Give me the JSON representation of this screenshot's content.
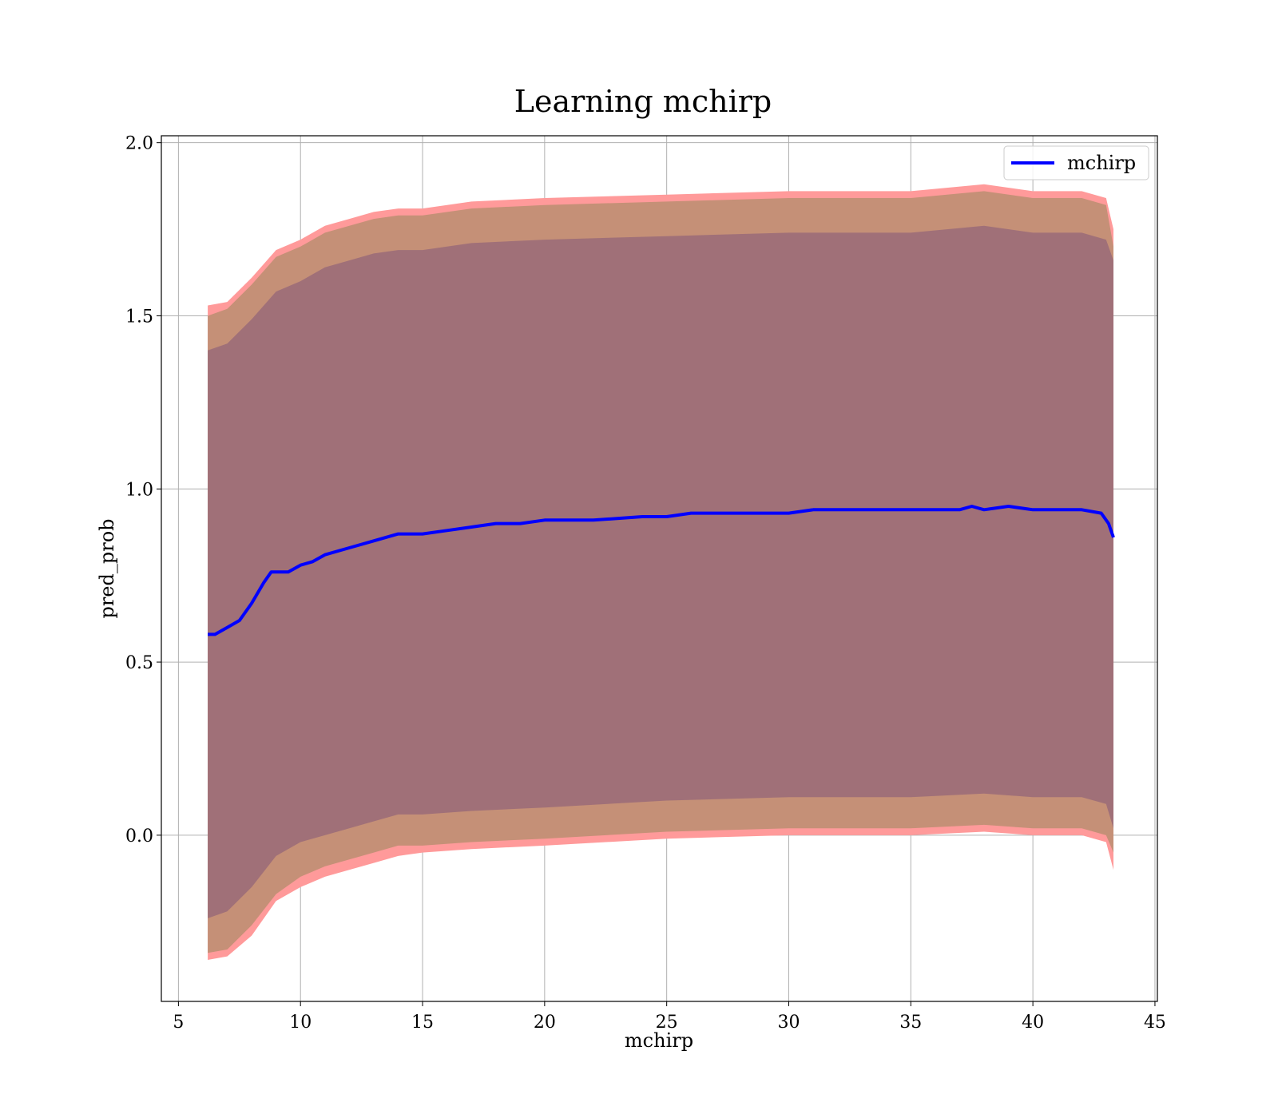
{
  "chart_data": {
    "type": "line",
    "title": "Learning mchirp",
    "xlabel": "mchirp",
    "ylabel": "pred_prob",
    "xlim": [
      4.3,
      45.1
    ],
    "ylim": [
      -0.48,
      2.02
    ],
    "xticks": [
      5,
      10,
      15,
      20,
      25,
      30,
      35,
      40,
      45
    ],
    "yticks": [
      0.0,
      0.5,
      1.0,
      1.5,
      2.0
    ],
    "ytick_labels": [
      "0.0",
      "0.5",
      "1.0",
      "1.5",
      "2.0"
    ],
    "grid": true,
    "legend": {
      "placement": "top-right",
      "entries": [
        "mchirp"
      ]
    },
    "colors": {
      "line": "#0000ff",
      "band_outer": "#ff9a9a",
      "band_middle": "#c59077",
      "band_inner": "#a07078",
      "grid": "#b0b0b0"
    },
    "series": [
      {
        "name": "mchirp",
        "x": [
          6.2,
          6.5,
          7.0,
          7.5,
          8.0,
          8.5,
          8.8,
          9.5,
          10.0,
          10.5,
          11.0,
          12.0,
          13.0,
          14.0,
          15.0,
          16.0,
          17.0,
          18.0,
          19.0,
          20.0,
          22.0,
          24.0,
          25.0,
          26.0,
          27.0,
          28.0,
          29.0,
          30.0,
          31.0,
          32.0,
          33.0,
          34.0,
          35.0,
          36.0,
          37.0,
          37.5,
          38.0,
          39.0,
          40.0,
          41.0,
          42.0,
          42.8,
          43.1,
          43.3
        ],
        "y": [
          0.58,
          0.58,
          0.6,
          0.62,
          0.67,
          0.73,
          0.76,
          0.76,
          0.78,
          0.79,
          0.81,
          0.83,
          0.85,
          0.87,
          0.87,
          0.88,
          0.89,
          0.9,
          0.9,
          0.91,
          0.91,
          0.92,
          0.92,
          0.93,
          0.93,
          0.93,
          0.93,
          0.93,
          0.94,
          0.94,
          0.94,
          0.94,
          0.94,
          0.94,
          0.94,
          0.95,
          0.94,
          0.95,
          0.94,
          0.94,
          0.94,
          0.93,
          0.9,
          0.86
        ]
      }
    ],
    "bands": [
      {
        "x": [
          6.2,
          7.0,
          8.0,
          9.0,
          10.0,
          11.0,
          12.0,
          13.0,
          14.0,
          15.0,
          17.0,
          20.0,
          25.0,
          30.0,
          35.0,
          38.0,
          40.0,
          42.0,
          43.0,
          43.3
        ],
        "lower": [
          -0.36,
          -0.35,
          -0.29,
          -0.19,
          -0.15,
          -0.12,
          -0.1,
          -0.08,
          -0.06,
          -0.05,
          -0.04,
          -0.03,
          -0.01,
          0.0,
          0.0,
          0.01,
          0.0,
          0.0,
          -0.02,
          -0.1
        ],
        "upper": [
          1.53,
          1.54,
          1.61,
          1.69,
          1.72,
          1.76,
          1.78,
          1.8,
          1.81,
          1.81,
          1.83,
          1.84,
          1.85,
          1.86,
          1.86,
          1.88,
          1.86,
          1.86,
          1.84,
          1.75
        ]
      },
      {
        "x": [
          6.2,
          7.0,
          8.0,
          9.0,
          10.0,
          11.0,
          12.0,
          13.0,
          14.0,
          15.0,
          17.0,
          20.0,
          25.0,
          30.0,
          35.0,
          38.0,
          40.0,
          42.0,
          43.0,
          43.3
        ],
        "lower": [
          -0.34,
          -0.33,
          -0.26,
          -0.17,
          -0.12,
          -0.09,
          -0.07,
          -0.05,
          -0.03,
          -0.03,
          -0.02,
          -0.01,
          0.01,
          0.02,
          0.02,
          0.03,
          0.02,
          0.02,
          0.0,
          -0.05
        ],
        "upper": [
          1.5,
          1.52,
          1.59,
          1.67,
          1.7,
          1.74,
          1.76,
          1.78,
          1.79,
          1.79,
          1.81,
          1.82,
          1.83,
          1.84,
          1.84,
          1.86,
          1.84,
          1.84,
          1.82,
          1.7
        ]
      },
      {
        "x": [
          6.2,
          7.0,
          8.0,
          9.0,
          10.0,
          11.0,
          12.0,
          13.0,
          14.0,
          15.0,
          17.0,
          20.0,
          25.0,
          30.0,
          35.0,
          38.0,
          40.0,
          42.0,
          43.0,
          43.3
        ],
        "lower": [
          -0.24,
          -0.22,
          -0.15,
          -0.06,
          -0.02,
          0.0,
          0.02,
          0.04,
          0.06,
          0.06,
          0.07,
          0.08,
          0.1,
          0.11,
          0.11,
          0.12,
          0.11,
          0.11,
          0.09,
          0.02
        ],
        "upper": [
          1.4,
          1.42,
          1.49,
          1.57,
          1.6,
          1.64,
          1.66,
          1.68,
          1.69,
          1.69,
          1.71,
          1.72,
          1.73,
          1.74,
          1.74,
          1.76,
          1.74,
          1.74,
          1.72,
          1.66
        ]
      }
    ]
  }
}
